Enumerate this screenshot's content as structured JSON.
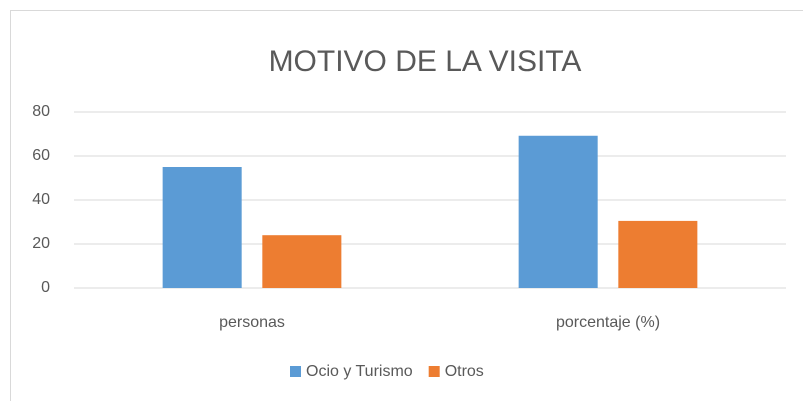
{
  "chart_data": {
    "type": "bar",
    "title": "MOTIVO DE LA VISITA",
    "categories": [
      "personas",
      "porcentaje (%)"
    ],
    "series": [
      {
        "name": "Ocio y Turismo",
        "color": "#5b9bd5",
        "values": [
          55,
          69.2
        ]
      },
      {
        "name": "Otros",
        "color": "#ed7d31",
        "values": [
          24,
          30.5
        ]
      }
    ],
    "ylim": [
      0,
      80
    ],
    "yticks": [
      0,
      20,
      40,
      60,
      80
    ],
    "grid": true,
    "legend": "bottom"
  }
}
